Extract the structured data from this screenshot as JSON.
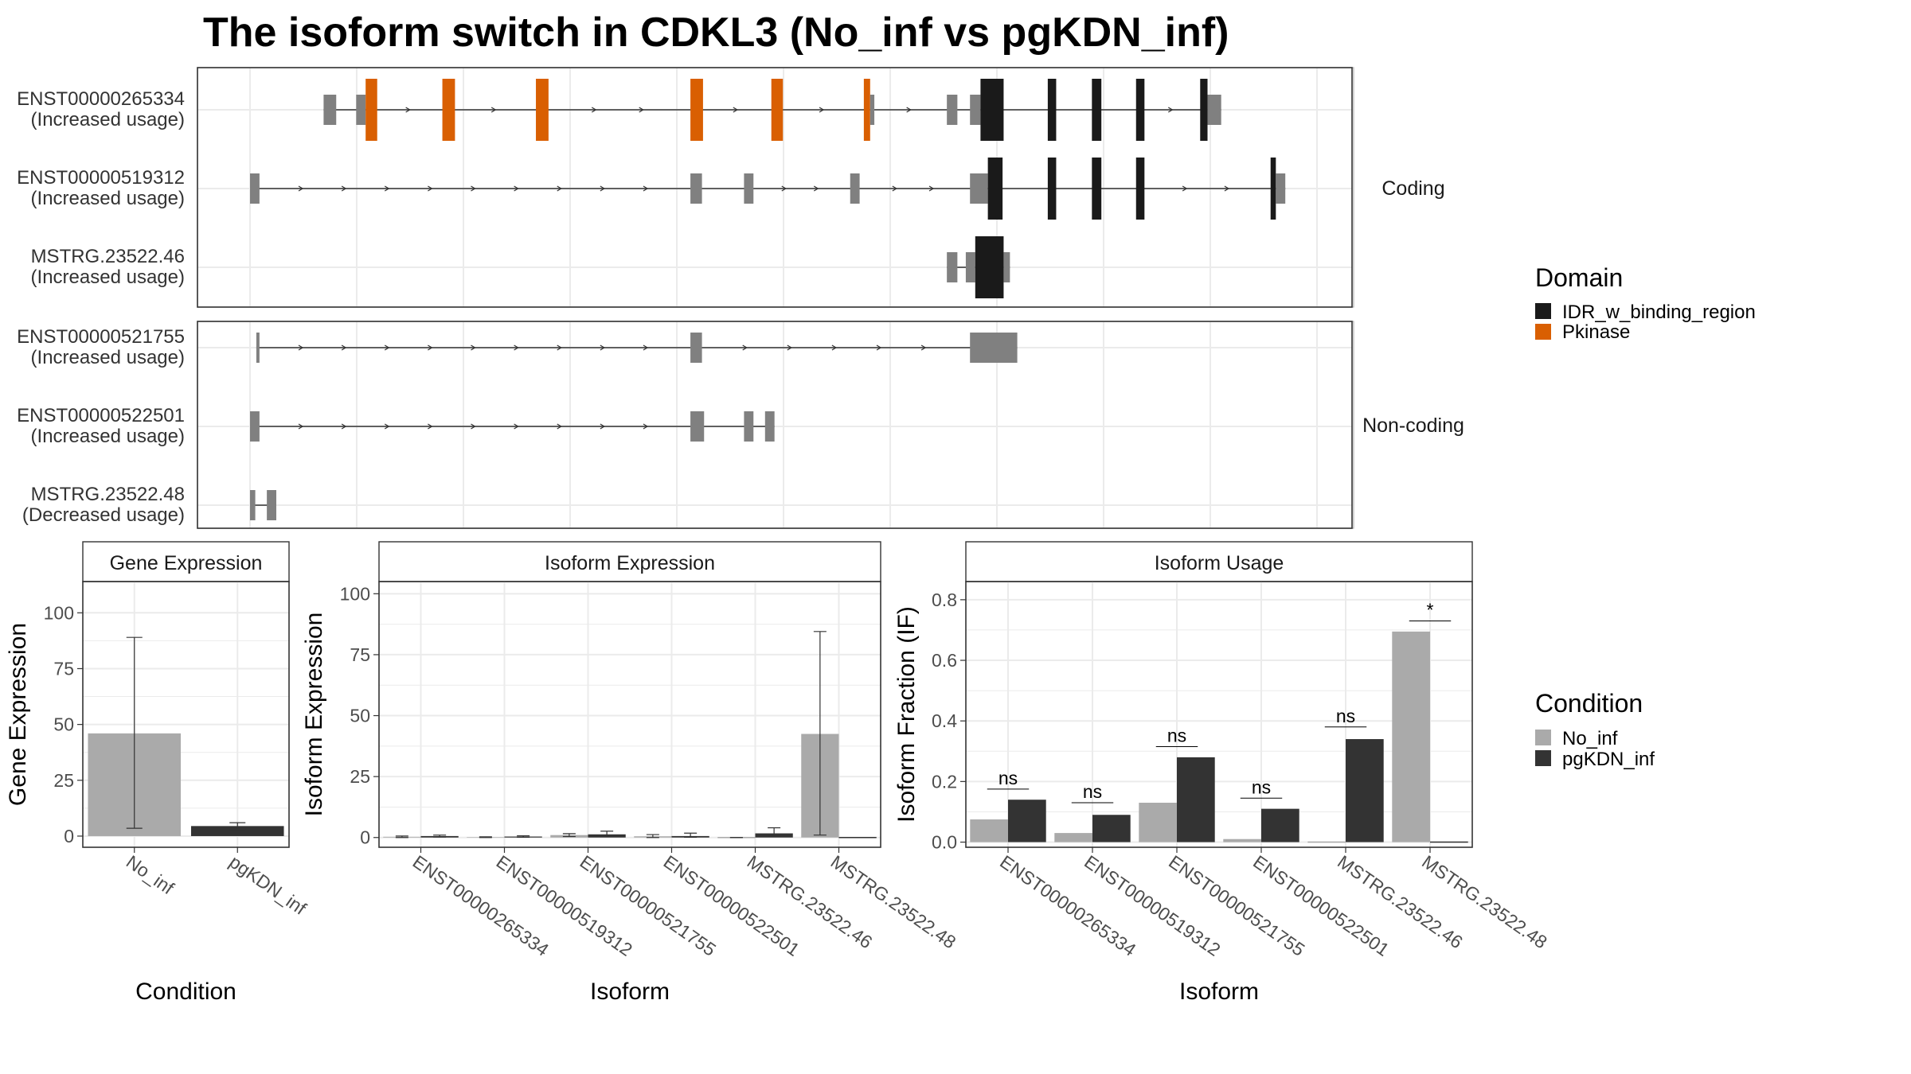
{
  "title": "The isoform switch in CDKL3 (No_inf vs pgKDN_inf)",
  "colors": {
    "No_inf": "#aaaaaa",
    "pgKDN_inf": "#333333",
    "IDR_w_binding_region": "#1a1a1a",
    "Pkinase": "#d95f02",
    "utr": "#808080",
    "grid": "#ebebeb",
    "panel_border": "#333333"
  },
  "legends": {
    "domain": {
      "title": "Domain",
      "items": [
        {
          "label": "IDR_w_binding_region",
          "color": "#1a1a1a"
        },
        {
          "label": "Pkinase",
          "color": "#d95f02"
        }
      ]
    },
    "condition": {
      "title": "Condition",
      "items": [
        {
          "label": "No_inf",
          "color": "#aaaaaa"
        },
        {
          "label": "pgKDN_inf",
          "color": "#333333"
        }
      ]
    }
  },
  "chart_data": [
    {
      "type": "gene-structure",
      "coding_label": "Coding",
      "noncoding_label": "Non-coding",
      "isoforms": [
        {
          "id": "ENST00000265334",
          "usage": "(Increased usage)",
          "group": "coding",
          "segments": [
            {
              "start": 0.07,
              "end": 0.082,
              "kind": "utr"
            },
            {
              "start": 0.101,
              "end": 0.11,
              "kind": "utr"
            },
            {
              "start": 0.11,
              "end": 0.121,
              "kind": "Pkinase"
            },
            {
              "start": 0.183,
              "end": 0.195,
              "kind": "Pkinase"
            },
            {
              "start": 0.272,
              "end": 0.284,
              "kind": "Pkinase"
            },
            {
              "start": 0.419,
              "end": 0.431,
              "kind": "Pkinase"
            },
            {
              "start": 0.496,
              "end": 0.507,
              "kind": "Pkinase"
            },
            {
              "start": 0.584,
              "end": 0.59,
              "kind": "Pkinase"
            },
            {
              "start": 0.59,
              "end": 0.594,
              "kind": "utr"
            },
            {
              "start": 0.663,
              "end": 0.673,
              "kind": "utr"
            },
            {
              "start": 0.685,
              "end": 0.695,
              "kind": "utr"
            },
            {
              "start": 0.695,
              "end": 0.717,
              "kind": "IDR_w_binding_region"
            },
            {
              "start": 0.759,
              "end": 0.767,
              "kind": "IDR_w_binding_region"
            },
            {
              "start": 0.801,
              "end": 0.81,
              "kind": "IDR_w_binding_region"
            },
            {
              "start": 0.843,
              "end": 0.851,
              "kind": "IDR_w_binding_region"
            },
            {
              "start": 0.904,
              "end": 0.911,
              "kind": "IDR_w_binding_region"
            },
            {
              "start": 0.911,
              "end": 0.924,
              "kind": "utr"
            }
          ]
        },
        {
          "id": "ENST00000519312",
          "usage": "(Increased usage)",
          "group": "coding",
          "segments": [
            {
              "start": 0.0,
              "end": 0.009,
              "kind": "utr"
            },
            {
              "start": 0.419,
              "end": 0.43,
              "kind": "utr"
            },
            {
              "start": 0.47,
              "end": 0.479,
              "kind": "utr"
            },
            {
              "start": 0.571,
              "end": 0.58,
              "kind": "utr"
            },
            {
              "start": 0.685,
              "end": 0.702,
              "kind": "utr"
            },
            {
              "start": 0.702,
              "end": 0.716,
              "kind": "IDR_w_binding_region"
            },
            {
              "start": 0.759,
              "end": 0.767,
              "kind": "IDR_w_binding_region"
            },
            {
              "start": 0.801,
              "end": 0.81,
              "kind": "IDR_w_binding_region"
            },
            {
              "start": 0.843,
              "end": 0.851,
              "kind": "IDR_w_binding_region"
            },
            {
              "start": 0.971,
              "end": 0.976,
              "kind": "IDR_w_binding_region"
            },
            {
              "start": 0.976,
              "end": 0.985,
              "kind": "utr"
            }
          ]
        },
        {
          "id": "MSTRG.23522.46",
          "usage": "(Increased usage)",
          "group": "coding",
          "segments": [
            {
              "start": 0.663,
              "end": 0.673,
              "kind": "utr"
            },
            {
              "start": 0.681,
              "end": 0.69,
              "kind": "utr"
            },
            {
              "start": 0.69,
              "end": 0.717,
              "kind": "IDR_w_binding_region"
            },
            {
              "start": 0.717,
              "end": 0.723,
              "kind": "utr"
            }
          ]
        },
        {
          "id": "ENST00000521755",
          "usage": "(Increased usage)",
          "group": "noncoding",
          "segments": [
            {
              "start": 0.006,
              "end": 0.009,
              "kind": "utr"
            },
            {
              "start": 0.419,
              "end": 0.43,
              "kind": "utr"
            },
            {
              "start": 0.685,
              "end": 0.73,
              "kind": "utr"
            }
          ]
        },
        {
          "id": "ENST00000522501",
          "usage": "(Increased usage)",
          "group": "noncoding",
          "segments": [
            {
              "start": 0.0,
              "end": 0.009,
              "kind": "utr"
            },
            {
              "start": 0.419,
              "end": 0.425,
              "kind": "utr"
            },
            {
              "start": 0.425,
              "end": 0.432,
              "kind": "utr"
            },
            {
              "start": 0.47,
              "end": 0.479,
              "kind": "utr"
            },
            {
              "start": 0.49,
              "end": 0.499,
              "kind": "utr"
            }
          ]
        },
        {
          "id": "MSTRG.23522.48",
          "usage": "(Decreased usage)",
          "group": "noncoding",
          "segments": [
            {
              "start": 0.0,
              "end": 0.005,
              "kind": "utr"
            },
            {
              "start": 0.016,
              "end": 0.025,
              "kind": "utr"
            }
          ]
        }
      ]
    },
    {
      "type": "bar",
      "strip": "Gene Expression",
      "xlabel": "Condition",
      "ylabel": "Gene Expression",
      "categories": [
        "No_inf",
        "pgKDN_inf"
      ],
      "values": [
        46,
        4.5
      ],
      "error": [
        [
          3.5,
          89
        ],
        [
          3,
          6
        ]
      ],
      "ylim": [
        -5,
        114
      ],
      "yticks": [
        0,
        25,
        50,
        75,
        100
      ]
    },
    {
      "type": "bar",
      "strip": "Isoform Expression",
      "xlabel": "Isoform",
      "ylabel": "Isoform Expression",
      "categories": [
        "ENST00000265334",
        "ENST00000519312",
        "ENST00000521755",
        "ENST00000522501",
        "MSTRG.23522.46",
        "MSTRG.23522.48"
      ],
      "series": [
        {
          "name": "No_inf",
          "values": [
            0.3,
            0.2,
            1.0,
            0.5,
            0.0,
            42.5
          ],
          "error": [
            [
              0,
              0.6
            ],
            [
              0,
              0.3
            ],
            [
              0.4,
              1.6
            ],
            [
              0,
              1.2
            ],
            [
              0,
              0
            ],
            [
              1,
              84.5
            ]
          ]
        },
        {
          "name": "pgKDN_inf",
          "values": [
            0.6,
            0.4,
            1.3,
            0.6,
            1.7,
            0.0
          ],
          "error": [
            [
              0.2,
              1.0
            ],
            [
              0.1,
              0.7
            ],
            [
              0.5,
              2.6
            ],
            [
              0.1,
              1.8
            ],
            [
              0.5,
              4.0
            ],
            [
              0,
              0
            ]
          ]
        }
      ],
      "ylim": [
        -4,
        105
      ],
      "yticks": [
        0,
        25,
        50,
        75,
        100
      ]
    },
    {
      "type": "bar",
      "strip": "Isoform Usage",
      "xlabel": "Isoform",
      "ylabel": "Isoform Fraction (IF)",
      "categories": [
        "ENST00000265334",
        "ENST00000519312",
        "ENST00000521755",
        "ENST00000522501",
        "MSTRG.23522.46",
        "MSTRG.23522.48"
      ],
      "series": [
        {
          "name": "No_inf",
          "values": [
            0.075,
            0.03,
            0.13,
            0.01,
            0.0,
            0.695
          ]
        },
        {
          "name": "pgKDN_inf",
          "values": [
            0.14,
            0.09,
            0.28,
            0.11,
            0.34,
            0.0
          ]
        }
      ],
      "significance": [
        "ns",
        "ns",
        "ns",
        "ns",
        "ns",
        "*"
      ],
      "sig_line": [
        0.175,
        0.13,
        0.315,
        0.145,
        0.38,
        0.73
      ],
      "ylim": [
        -0.017,
        0.86
      ],
      "yticks": [
        0.0,
        0.2,
        0.4,
        0.6,
        0.8
      ],
      "ytick_labels": [
        "0.0",
        "0.2",
        "0.4",
        "0.6",
        "0.8"
      ]
    }
  ]
}
